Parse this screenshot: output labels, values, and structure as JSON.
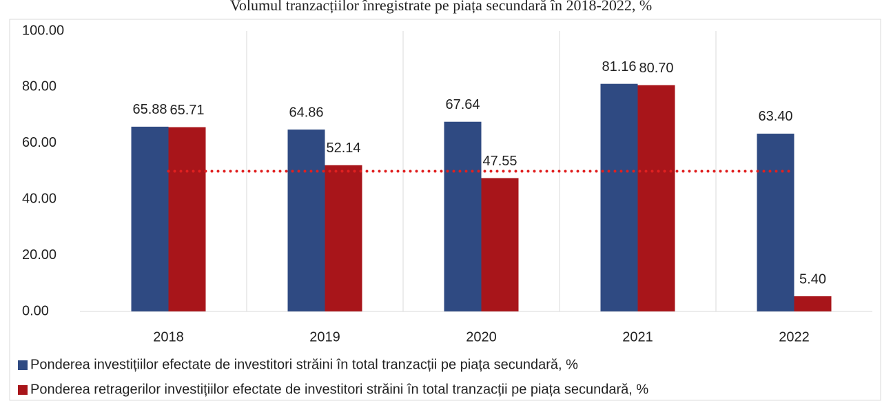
{
  "chart_data": {
    "type": "bar",
    "title": "Volumul tranzacțiilor înregistrate pe piața secundară în 2018-2022, %",
    "categories": [
      "2018",
      "2019",
      "2020",
      "2021",
      "2022"
    ],
    "series": [
      {
        "name": "Ponderea investițiilor efectate de investitori străini în total tranzacții pe piața secundară, %",
        "color": "#2f4a82",
        "values": [
          65.88,
          64.86,
          67.64,
          81.16,
          63.4
        ],
        "value_labels": [
          "65.88",
          "64.86",
          "67.64",
          "81.16",
          "63.40"
        ]
      },
      {
        "name": "Ponderea retragerilor investițiilor efectate de investitori străini în total tranzacții pe piața secundară, %",
        "color": "#a8151a",
        "values": [
          65.71,
          52.14,
          47.55,
          80.7,
          5.4
        ],
        "value_labels": [
          "65.71",
          "52.14",
          "47.55",
          "80.70",
          "5.40"
        ]
      }
    ],
    "ylim": [
      0,
      100
    ],
    "yticks": [
      {
        "value": 0,
        "label": "0.00"
      },
      {
        "value": 20,
        "label": "20.00"
      },
      {
        "value": 40,
        "label": "40.00"
      },
      {
        "value": 60,
        "label": "60.00"
      },
      {
        "value": 80,
        "label": "80.00"
      },
      {
        "value": 100,
        "label": "100.00"
      }
    ],
    "reference_line": {
      "value": 50,
      "color": "#e02020"
    },
    "legend": "bottom"
  }
}
